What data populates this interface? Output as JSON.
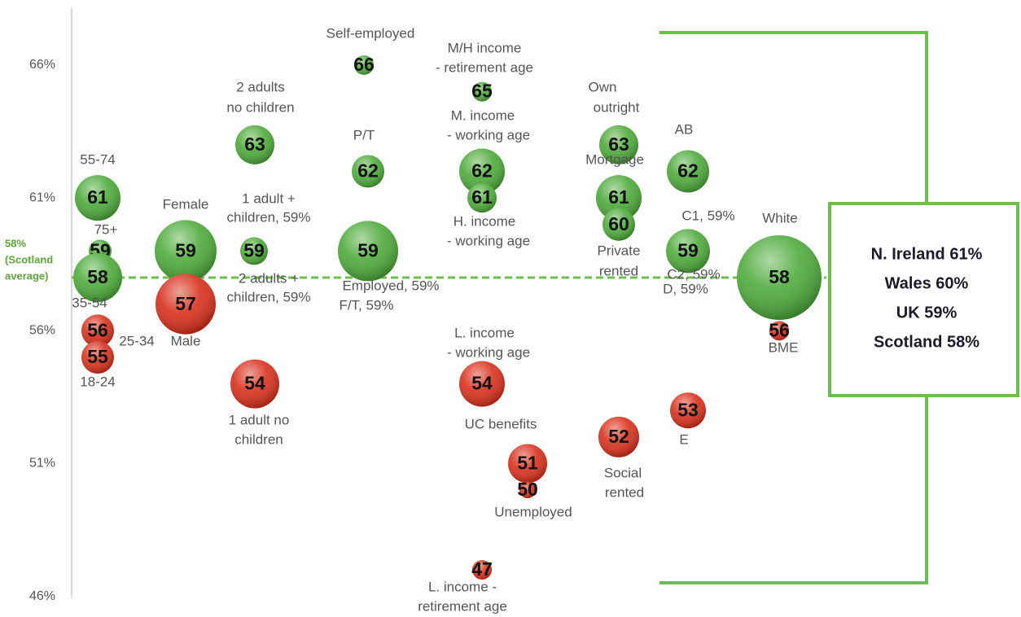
{
  "chart_data": {
    "type": "bubble",
    "ylim": [
      45.5,
      68
    ],
    "yticks": [
      {
        "value": 46,
        "label": "46%"
      },
      {
        "value": 51,
        "label": "51%"
      },
      {
        "value": 56,
        "label": "56%"
      },
      {
        "value": 61,
        "label": "61%"
      },
      {
        "value": 66,
        "label": "66%"
      }
    ],
    "average": 58,
    "average_label": [
      "58%",
      "(Scotland",
      "average)"
    ],
    "average_color": "#6cbf4a",
    "points": [
      {
        "value": 61,
        "labels": [
          "55-74"
        ],
        "color": "#4daa3a"
      },
      {
        "value": 59,
        "labels": [
          "75+"
        ],
        "color": "#4daa3a"
      },
      {
        "value": 58,
        "labels": [
          "35-54"
        ],
        "color": "#4daa3a"
      },
      {
        "value": 56,
        "labels": [
          "25-34"
        ],
        "color": "#d9301c"
      },
      {
        "value": 55,
        "labels": [
          "18-24"
        ],
        "color": "#d9301c"
      },
      {
        "value": 59,
        "labels": [
          "Female"
        ],
        "color": "#4daa3a"
      },
      {
        "value": 57,
        "labels": [
          "Male"
        ],
        "color": "#d9301c"
      },
      {
        "value": 63,
        "labels": [
          "2 adults",
          "no children"
        ],
        "color": "#4daa3a"
      },
      {
        "value": 59,
        "labels": [
          "1 adult +",
          "children, 59%",
          "2 adults +",
          "children, 59%"
        ],
        "color": "#4daa3a"
      },
      {
        "value": 54,
        "labels": [
          "1 adult no",
          "children"
        ],
        "color": "#d9301c"
      },
      {
        "value": 66,
        "labels": [
          "Self-employed"
        ],
        "color": "#4daa3a"
      },
      {
        "value": 62,
        "labels": [
          "P/T"
        ],
        "color": "#4daa3a"
      },
      {
        "value": 59,
        "labels": [
          "Employed, 59%",
          "F/T, 59%"
        ],
        "color": "#4daa3a"
      },
      {
        "value": 65,
        "labels": [
          "M/H income",
          "- retirement age"
        ],
        "color": "#4daa3a"
      },
      {
        "value": 62,
        "labels": [
          "M. income",
          "- working age"
        ],
        "color": "#4daa3a"
      },
      {
        "value": 61,
        "labels": [
          "H. income",
          "- working age"
        ],
        "color": "#4daa3a"
      },
      {
        "value": 54,
        "labels": [
          "L. income",
          "- working age"
        ],
        "color": "#d9301c"
      },
      {
        "value": 51,
        "labels": [
          "UC benefits"
        ],
        "color": "#d9301c"
      },
      {
        "value": 50,
        "labels": [
          "Unemployed"
        ],
        "color": "#d9301c"
      },
      {
        "value": 47,
        "labels": [
          "L. income -",
          "retirement age"
        ],
        "color": "#d9301c"
      },
      {
        "value": 63,
        "labels": [
          "Own",
          "outright"
        ],
        "color": "#4daa3a"
      },
      {
        "value": 61,
        "labels": [
          "Mortgage"
        ],
        "color": "#4daa3a"
      },
      {
        "value": 60,
        "labels": [
          "Private",
          "rented"
        ],
        "color": "#4daa3a"
      },
      {
        "value": 52,
        "labels": [
          "Social",
          "rented"
        ],
        "color": "#d9301c"
      },
      {
        "value": 62,
        "labels": [
          "AB"
        ],
        "color": "#4daa3a"
      },
      {
        "value": 59,
        "labels": [
          "C1, 59%",
          "C2, 59%",
          "D, 59%"
        ],
        "color": "#4daa3a"
      },
      {
        "value": 53,
        "labels": [
          "E"
        ],
        "color": "#d9301c"
      },
      {
        "value": 58,
        "labels": [
          "White"
        ],
        "color": "#4daa3a"
      },
      {
        "value": 56,
        "labels": [
          "BME"
        ],
        "color": "#d9301c"
      }
    ],
    "comparison": [
      "N. Ireland 61%",
      "Wales 60%",
      "UK 59%",
      "Scotland 58%"
    ],
    "comparison_color": "#6cbf4a"
  }
}
